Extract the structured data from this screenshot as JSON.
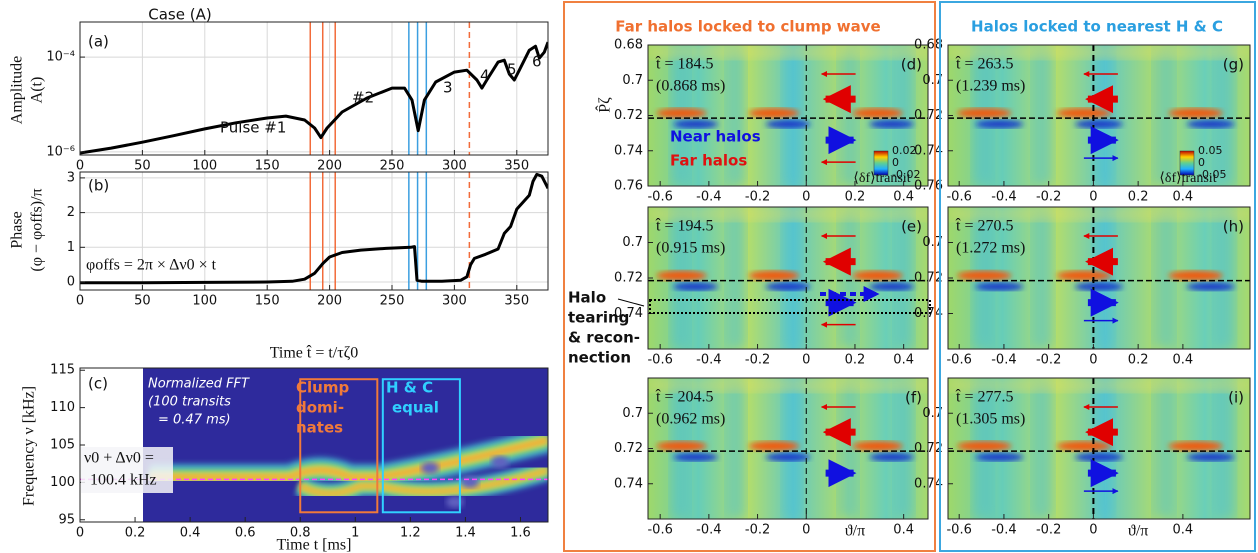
{
  "chart_data": [
    {
      "type": "line",
      "title": "Case (A)",
      "panel": "(a)",
      "ylabel": [
        "Amplitude",
        "A(t)"
      ],
      "log_y": true,
      "grid": true,
      "xlim": [
        0,
        375
      ],
      "xticks": [
        0,
        50,
        100,
        150,
        200,
        250,
        300,
        350
      ],
      "ylim": [
        8.6e-07,
        0.00055
      ],
      "yticks": [
        {
          "value": 1e-06,
          "label": "10⁻⁶"
        },
        {
          "value": 0.0001,
          "label": "10⁻⁴"
        }
      ],
      "x": [
        0,
        25,
        50,
        75,
        100,
        125,
        150,
        165,
        180,
        188,
        193,
        198,
        210,
        230,
        250,
        260,
        266,
        271,
        276,
        285,
        300,
        310,
        318,
        322,
        326,
        335,
        340,
        344,
        348,
        352,
        360,
        365,
        368,
        372,
        375
      ],
      "series": [
        {
          "color": "#000000",
          "values": [
            9.5e-07,
            1.2e-06,
            1.6e-06,
            2.2e-06,
            3.05e-06,
            4.1e-06,
            5.2e-06,
            5.7e-06,
            4.7e-06,
            3.2e-06,
            2e-06,
            3.2e-06,
            6.95e-06,
            1.37e-05,
            2.22e-05,
            2.22e-05,
            1.24e-05,
            2.8e-06,
            1.24e-05,
            2.98e-05,
            4.83e-05,
            5.3e-05,
            3.28e-05,
            2.22e-05,
            3.28e-05,
            7.85e-05,
            8.6e-05,
            4.39e-05,
            3.28e-05,
            5.3e-05,
            0.00014,
            0.00017,
            9.5e-05,
            0.000127,
            0.000207
          ]
        }
      ],
      "vlines": [
        {
          "value": 184.5,
          "color": "#f26b3a"
        },
        {
          "value": 194.5,
          "color": "#f26b3a"
        },
        {
          "value": 204.5,
          "color": "#f26b3a"
        },
        {
          "value": 263.5,
          "color": "#3b9fe0"
        },
        {
          "value": 270.5,
          "color": "#3b9fe0"
        },
        {
          "value": 277.5,
          "color": "#3b9fe0"
        },
        {
          "value": 312,
          "color": "#f26b3a",
          "dashed": true
        }
      ],
      "annotations": [
        "Pulse #1",
        "#2",
        "3",
        "4",
        "5",
        "6"
      ]
    },
    {
      "type": "line",
      "panel": "(b)",
      "ylabel": [
        "Phase",
        "(φ − φoffs)/π"
      ],
      "xlabel": "Time t̂ = t/τζ0",
      "grid": true,
      "xlim": [
        0,
        375
      ],
      "xticks": [
        0,
        50,
        100,
        150,
        200,
        250,
        300,
        350
      ],
      "ylim": [
        -0.23,
        3.17
      ],
      "yticks": [
        0,
        1,
        2,
        3
      ],
      "x": [
        0,
        50,
        100,
        150,
        170,
        180,
        188,
        195,
        200,
        210,
        225,
        245,
        265,
        268,
        270,
        274,
        290,
        305,
        310,
        313,
        316,
        325,
        335,
        340,
        345,
        350,
        355,
        360,
        363,
        366,
        370,
        375
      ],
      "series": [
        {
          "color": "#000000",
          "values": [
            -0.02,
            -0.02,
            -0.01,
            0,
            0.02,
            0.08,
            0.25,
            0.55,
            0.72,
            0.85,
            0.92,
            0.97,
            1.0,
            1.02,
            0.05,
            0.02,
            0.02,
            0.05,
            0.15,
            0.5,
            0.68,
            0.8,
            0.95,
            1.4,
            1.6,
            2.1,
            2.3,
            2.5,
            2.9,
            3.1,
            3.05,
            2.7
          ]
        }
      ],
      "annotations": [
        "φoffs = 2π × Δν0 × t"
      ]
    },
    {
      "type": "heatmap",
      "panel": "(c)",
      "ylabel": "Frequency ν [kHz]",
      "xlabel": "Time t [ms]",
      "xlim": [
        0,
        1.7
      ],
      "xticks": [
        0,
        0.2,
        0.4,
        0.6,
        0.8,
        1,
        1.2,
        1.4,
        1.6
      ],
      "ylim": [
        94.7,
        115.3
      ],
      "yticks": [
        95,
        100,
        105,
        110,
        115
      ],
      "hline": {
        "value": 100.4,
        "color": "#ff44ff"
      },
      "boxes": [
        {
          "x": [
            0.8,
            1.08
          ],
          "y": [
            96,
            113.8
          ],
          "color": "#f07a3a"
        },
        {
          "x": [
            1.1,
            1.38
          ],
          "y": [
            96,
            113.8
          ],
          "color": "#30d0ff"
        }
      ],
      "annotations": [
        "Normalized FFT",
        "(100 transits",
        "= 0.47 ms)",
        "Clump",
        "domi-",
        "nates",
        "H & C",
        "equal",
        "ν0 + Δν0 =",
        "100.4 kHz"
      ]
    },
    {
      "type": "heatmap",
      "panel": "(d)",
      "ylabel": "P̂ζ",
      "y_inverted": true,
      "xlim": [
        -0.65,
        0.5
      ],
      "xticks": [
        -0.6,
        -0.4,
        -0.2,
        0,
        0.2,
        0.4
      ],
      "ylim": [
        0.68,
        0.76
      ],
      "yticks": [
        0.68,
        0.7,
        0.72,
        0.74,
        0.76
      ],
      "hline": 0.7215,
      "vline": 0,
      "annotations": [
        "t̂ = 184.5",
        "(0.868 ms)",
        "Near halos",
        "Far halos"
      ],
      "colorbar": {
        "ticks": [
          0.02,
          0,
          -0.02
        ],
        "label": "⟨δf⟩transit"
      }
    },
    {
      "type": "heatmap",
      "panel": "(e)",
      "y_inverted": true,
      "xlim": [
        -0.65,
        0.5
      ],
      "xticks": [
        -0.6,
        -0.4,
        -0.2,
        0,
        0.2,
        0.4
      ],
      "ylim": [
        0.68,
        0.76
      ],
      "yticks": [
        0.7,
        0.72,
        0.74
      ],
      "hline": 0.7215,
      "vline": 0,
      "annotations": [
        "t̂ = 194.5",
        "(0.915 ms)"
      ]
    },
    {
      "type": "heatmap",
      "panel": "(f)",
      "xlabel": "ϑ/π",
      "y_inverted": true,
      "xlim": [
        -0.65,
        0.5
      ],
      "xticks": [
        -0.6,
        -0.4,
        -0.2,
        0,
        0.4
      ],
      "ylim": [
        0.68,
        0.76
      ],
      "yticks": [
        0.7,
        0.72,
        0.74
      ],
      "hline": 0.7215,
      "vline": 0,
      "annotations": [
        "t̂ = 204.5",
        "(0.962 ms)"
      ]
    },
    {
      "type": "heatmap",
      "panel": "(g)",
      "y_inverted": true,
      "xlim": [
        -0.65,
        0.7
      ],
      "xticks": [
        -0.6,
        -0.4,
        -0.2,
        0,
        0.2,
        0.4
      ],
      "ylim": [
        0.68,
        0.76
      ],
      "yticks": [
        0.68,
        0.7,
        0.72,
        0.74,
        0.76
      ],
      "hline": 0.7215,
      "vline": 0,
      "annotations": [
        "t̂ = 263.5",
        "(1.239 ms)"
      ],
      "colorbar": {
        "ticks": [
          0.05,
          0,
          -0.05
        ],
        "label": "⟨δf⟩transit"
      }
    },
    {
      "type": "heatmap",
      "panel": "(h)",
      "y_inverted": true,
      "xlim": [
        -0.65,
        0.7
      ],
      "xticks": [
        -0.6,
        -0.4,
        -0.2,
        0,
        0.2,
        0.4
      ],
      "ylim": [
        0.68,
        0.76
      ],
      "yticks": [
        0.7,
        0.72,
        0.74
      ],
      "hline": 0.7215,
      "vline": 0,
      "annotations": [
        "t̂ = 270.5",
        "(1.272 ms)"
      ]
    },
    {
      "type": "heatmap",
      "panel": "(i)",
      "xlabel": "ϑ/π",
      "y_inverted": true,
      "xlim": [
        -0.65,
        0.7
      ],
      "xticks": [
        -0.6,
        -0.4,
        -0.2,
        0,
        0.4
      ],
      "ylim": [
        0.68,
        0.76
      ],
      "yticks": [
        0.7,
        0.72,
        0.74
      ],
      "hline": 0.7215,
      "vline": 0,
      "annotations": [
        "t̂ = 277.5",
        "(1.305 ms)"
      ]
    }
  ],
  "headers": [
    "Far halos locked to clump wave",
    "Halos locked to nearest H & C"
  ],
  "side_note": [
    "Halo",
    "tearing",
    "& recon-",
    "nection"
  ]
}
